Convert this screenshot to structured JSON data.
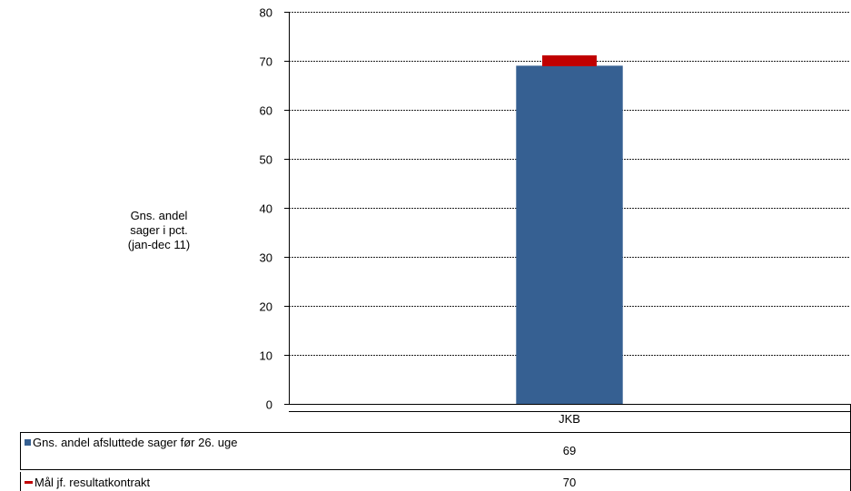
{
  "chart_data": {
    "type": "bar",
    "ylabel": "Gns. andel\nsager i pct.\n(jan-dec 11)",
    "ylim": [
      0,
      80
    ],
    "yticks": [
      0,
      10,
      20,
      30,
      40,
      50,
      60,
      70,
      80
    ],
    "grid": true,
    "categories": [
      "JKB"
    ],
    "series": [
      {
        "name": "Gns. andel afsluttede sager før 26. uge",
        "kind": "bar",
        "values": [
          69
        ],
        "color": "#366092"
      },
      {
        "name": "Mål jf. resultatkontrakt",
        "kind": "marker",
        "values": [
          70
        ],
        "color": "#c00000"
      }
    ],
    "table": {
      "rows": [
        {
          "label": "Gns. andel afsluttede sager før 26. uge",
          "values": [
            "69"
          ]
        },
        {
          "label": "Mål jf. resultatkontrakt",
          "values": [
            "70"
          ]
        }
      ]
    }
  }
}
